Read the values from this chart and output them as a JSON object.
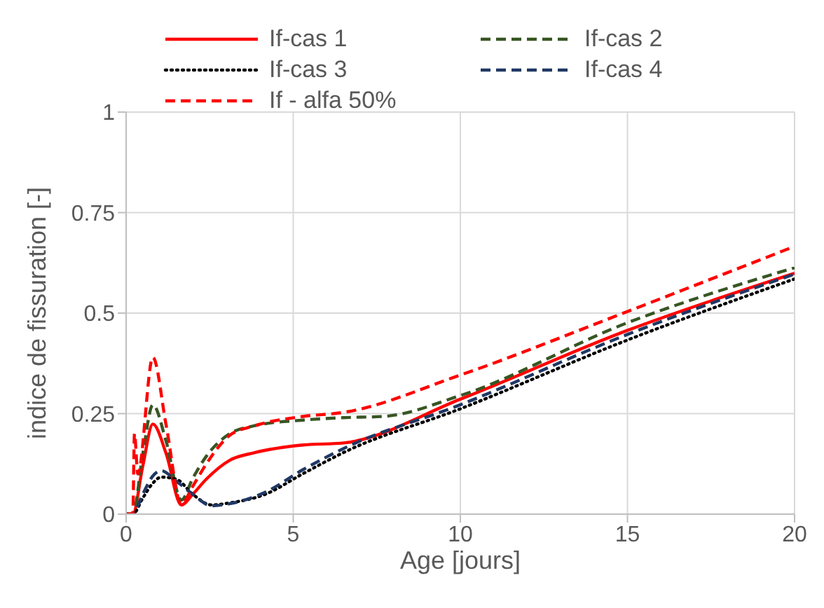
{
  "chart_data": {
    "type": "line",
    "xlabel": "Age [jours]",
    "ylabel": "indice de fissuration [-]",
    "xlim": [
      0,
      20
    ],
    "xticks": [
      0,
      5,
      10,
      15,
      20
    ],
    "ylim": [
      0,
      1
    ],
    "yticks": [
      0,
      0.25,
      0.5,
      0.75,
      1
    ],
    "grid": true,
    "legend": "top",
    "marker": "none",
    "series": [
      {
        "name": "If-cas 1",
        "color": "#ff0000",
        "line_style": "solid",
        "x": [
          0,
          0.2,
          0.5,
          0.8,
          1.2,
          1.65,
          2.0,
          2.4,
          3.1,
          3.85,
          5.3,
          6.5,
          10,
          15,
          20
        ],
        "values": [
          0,
          0,
          0.12,
          0.224,
          0.15,
          0.023,
          0.05,
          0.087,
          0.134,
          0.153,
          0.172,
          0.177,
          0.286,
          0.457,
          0.599
        ]
      },
      {
        "name": "If-cas 2",
        "color": "#375623",
        "line_style": "dashed",
        "x": [
          0,
          0.2,
          0.5,
          0.8,
          1.2,
          1.65,
          2.0,
          2.4,
          3.1,
          3.85,
          5.3,
          6.5,
          7.7,
          10,
          15,
          20
        ],
        "values": [
          0,
          0,
          0.15,
          0.272,
          0.18,
          0.035,
          0.09,
          0.144,
          0.2,
          0.22,
          0.234,
          0.24,
          0.243,
          0.295,
          0.476,
          0.613
        ]
      },
      {
        "name": "If-cas 3",
        "color": "#000000",
        "line_style": "dotted",
        "x": [
          0,
          0.2,
          0.5,
          0.76,
          1.05,
          1.5,
          2.0,
          2.55,
          3.1,
          4.15,
          5.3,
          6.5,
          10,
          15,
          20
        ],
        "values": [
          0,
          0,
          0.04,
          0.073,
          0.092,
          0.087,
          0.049,
          0.023,
          0.028,
          0.049,
          0.101,
          0.153,
          0.262,
          0.433,
          0.585
        ]
      },
      {
        "name": "If-cas 4",
        "color": "#203864",
        "line_style": "dashed",
        "x": [
          0,
          0.2,
          0.5,
          0.8,
          1.05,
          1.5,
          2.0,
          2.55,
          3.1,
          4.15,
          5.3,
          6.5,
          10,
          15,
          20
        ],
        "values": [
          0,
          0,
          0.05,
          0.095,
          0.108,
          0.082,
          0.049,
          0.021,
          0.026,
          0.054,
          0.111,
          0.163,
          0.272,
          0.447,
          0.597
        ]
      },
      {
        "name": "If - alfa 50%",
        "color": "#ff0000",
        "line_style": "dashed",
        "x": [
          0,
          0.2,
          0.25,
          0.35,
          0.8,
          1.2,
          1.65,
          2.0,
          2.4,
          3.1,
          3.85,
          5.3,
          6.5,
          10,
          15,
          20
        ],
        "values": [
          0,
          0,
          0.2,
          0.1,
          0.39,
          0.22,
          0.025,
          0.07,
          0.125,
          0.196,
          0.22,
          0.243,
          0.253,
          0.346,
          0.504,
          0.666
        ]
      }
    ]
  }
}
